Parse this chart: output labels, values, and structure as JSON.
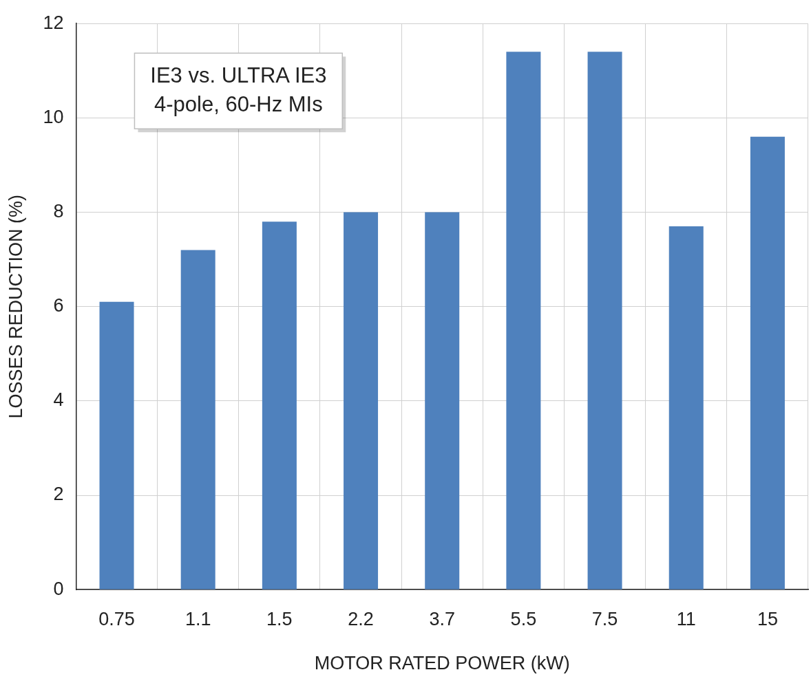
{
  "chart_data": {
    "type": "bar",
    "xlabel": "MOTOR RATED POWER (kW)",
    "ylabel": "LOSSES REDUCTION (%)",
    "categories": [
      "0.75",
      "1.1",
      "1.5",
      "2.2",
      "3.7",
      "5.5",
      "7.5",
      "11",
      "15"
    ],
    "values": [
      6.1,
      7.2,
      7.8,
      8.0,
      8.0,
      11.4,
      11.4,
      7.7,
      9.6
    ],
    "color": "#4f81bd",
    "ylim": [
      0,
      12
    ],
    "yticks": [
      0,
      2,
      4,
      6,
      8,
      10,
      12
    ],
    "grid": true,
    "legend": false,
    "annotations": [
      "IE3 vs. ULTRA IE3",
      "4-pole, 60-Hz MIs"
    ]
  }
}
